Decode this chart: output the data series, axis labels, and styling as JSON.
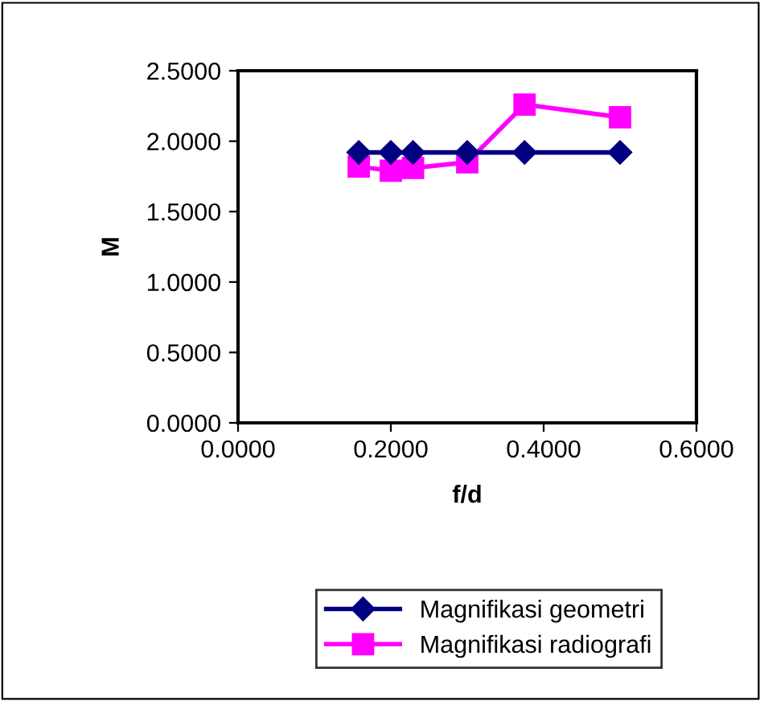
{
  "chart_data": {
    "type": "line",
    "xlabel": "f/d",
    "ylabel": "M",
    "xlim": [
      0,
      0.6
    ],
    "xticks": [
      {
        "value": 0,
        "label": "0.0000"
      },
      {
        "value": 0.2,
        "label": "0.2000"
      },
      {
        "value": 0.4,
        "label": "0.4000"
      },
      {
        "value": 0.6,
        "label": "0.6000"
      }
    ],
    "ylim": [
      0,
      2.5
    ],
    "yticks": [
      {
        "value": 0,
        "label": "0.0000"
      },
      {
        "value": 0.5,
        "label": "0.5000"
      },
      {
        "value": 1,
        "label": "1.0000"
      },
      {
        "value": 1.5,
        "label": "1.5000"
      },
      {
        "value": 2,
        "label": "2.0000"
      },
      {
        "value": 2.5,
        "label": "2.5000"
      }
    ],
    "x": [
      0.158,
      0.2,
      0.229,
      0.3,
      0.375,
      0.5
    ],
    "series": [
      {
        "name": "Magnifikasi geometri",
        "color": "#000080",
        "marker": "diamond",
        "values": [
          1.92,
          1.92,
          1.92,
          1.92,
          1.92,
          1.92
        ]
      },
      {
        "name": "Magnifikasi radiografi",
        "color": "#ff00ff",
        "marker": "square",
        "values": [
          1.82,
          1.79,
          1.81,
          1.85,
          2.26,
          2.17
        ]
      }
    ],
    "grid": false,
    "legend": "bottom"
  }
}
